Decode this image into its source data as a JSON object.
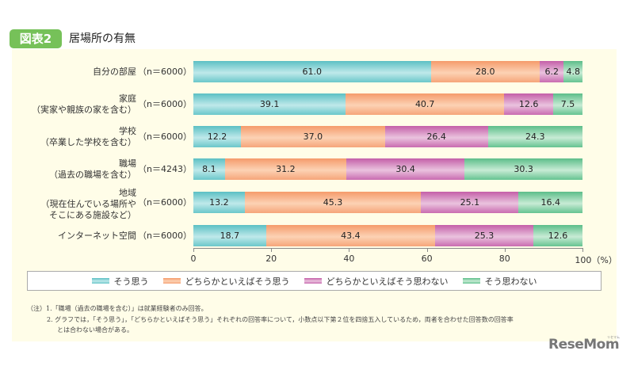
{
  "header": {
    "tag": "図表2",
    "title": "居場所の有無"
  },
  "chart_data": {
    "type": "bar",
    "orientation": "horizontal",
    "stacked": true,
    "title": "居場所の有無",
    "categories": [
      {
        "label": [
          "自分の部屋"
        ],
        "n": "（n＝6000）"
      },
      {
        "label": [
          "家庭",
          "（実家や親族の家を含む）"
        ],
        "n": "（n＝6000）"
      },
      {
        "label": [
          "学校",
          "（卒業した学校を含む）"
        ],
        "n": "（n＝6000）"
      },
      {
        "label": [
          "職場",
          "（過去の職場を含む）"
        ],
        "n": "（n＝4243）"
      },
      {
        "label": [
          "地域",
          "（現在住んでいる場所や",
          "そこにある施設など）"
        ],
        "n": "（n＝6000）"
      },
      {
        "label": [
          "インターネット空間"
        ],
        "n": "（n＝6000）"
      }
    ],
    "series": [
      {
        "name": "そう思う",
        "color": "#5cc0c4",
        "values": [
          61.0,
          39.1,
          12.2,
          8.1,
          13.2,
          18.7
        ]
      },
      {
        "name": "どちらかといえばそう思う",
        "color": "#f59b6b",
        "values": [
          28.0,
          40.7,
          37.0,
          31.2,
          45.3,
          43.4
        ]
      },
      {
        "name": "どちらかといえばそう思わない",
        "color": "#c45fa8",
        "values": [
          6.2,
          12.6,
          26.4,
          30.4,
          25.1,
          25.3
        ]
      },
      {
        "name": "そう思わない",
        "color": "#5cbe89",
        "values": [
          4.8,
          7.5,
          24.3,
          30.3,
          16.4,
          12.6
        ]
      }
    ],
    "xlim": [
      0,
      100
    ],
    "xticks": [
      "0",
      "20",
      "40",
      "60",
      "80",
      "100（%）"
    ],
    "xlabel": "",
    "ylabel": "",
    "grid": false,
    "legend": "bottom"
  },
  "notes": [
    "（注）1.「職場（過去の職場を含む）」は就業経験者のみ回答。",
    "2. グラフでは，「そう思う」，「どちらかといえばそう思う」それぞれの回答率について，小数点以下第２位を四捨五入しているため，両者を合わせた回答数の回答率",
    "とは合わない場合がある。"
  ],
  "logo": {
    "text": "ReseMom",
    "sub": "リセマム"
  }
}
